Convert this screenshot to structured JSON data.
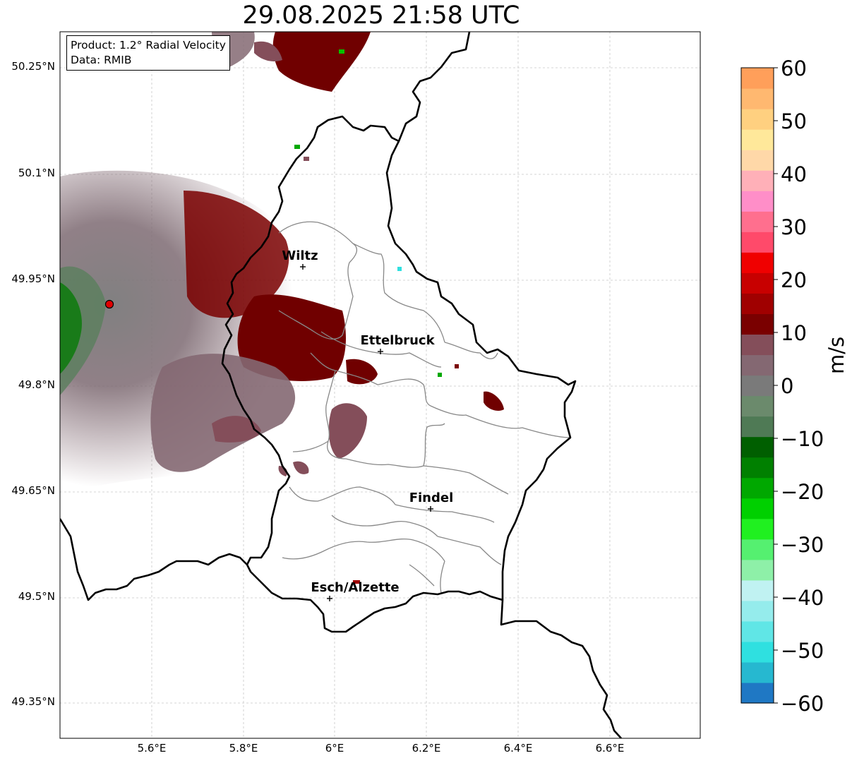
{
  "title": "29.08.2025 21:58 UTC",
  "info_box": {
    "product": "Product: 1.2° Radial Velocity",
    "data": "Data: RMIB"
  },
  "axes": {
    "lon_ticks": [
      "5.6°E",
      "5.8°E",
      "6°E",
      "6.2°E",
      "6.4°E",
      "6.6°E"
    ],
    "lat_ticks": [
      "50.25°N",
      "50.1°N",
      "49.95°N",
      "49.8°N",
      "49.65°N",
      "49.5°N",
      "49.35°N"
    ],
    "lon_range": [
      5.4,
      6.8
    ],
    "lat_range": [
      49.3,
      50.3
    ],
    "grid": true
  },
  "cities": [
    {
      "name": "Wiltz",
      "lon": 5.93,
      "lat": 49.97
    },
    {
      "name": "Ettelbruck",
      "lon": 6.1,
      "lat": 49.85
    },
    {
      "name": "Findel",
      "lon": 6.21,
      "lat": 49.63
    },
    {
      "name": "Esch/Alzette",
      "lon": 5.99,
      "lat": 49.5
    }
  ],
  "radar_site": {
    "lon": 5.51,
    "lat": 49.92
  },
  "colorbar": {
    "label": "m/s",
    "min": -60,
    "max": 60,
    "ticks": [
      "60",
      "50",
      "40",
      "30",
      "20",
      "10",
      "0",
      "−10",
      "−20",
      "−30",
      "−40",
      "−50",
      "−60"
    ],
    "colors": [
      "#1f78c4",
      "#26b8d0",
      "#2fe0e0",
      "#60e6e6",
      "#95ecec",
      "#c0f2f2",
      "#8ef0a8",
      "#55f070",
      "#20f020",
      "#00d000",
      "#00a800",
      "#008000",
      "#005f00",
      "#4f7a55",
      "#6b8a6c",
      "#7a7a7a",
      "#846872",
      "#844e5a",
      "#7a0000",
      "#a00000",
      "#c80000",
      "#f00000",
      "#ff4a6a",
      "#ff6f8e",
      "#ff8ec8",
      "#ffb0b8",
      "#ffd8a8",
      "#ffe89a",
      "#ffd080",
      "#ffb870",
      "#ff9f5a"
    ]
  }
}
